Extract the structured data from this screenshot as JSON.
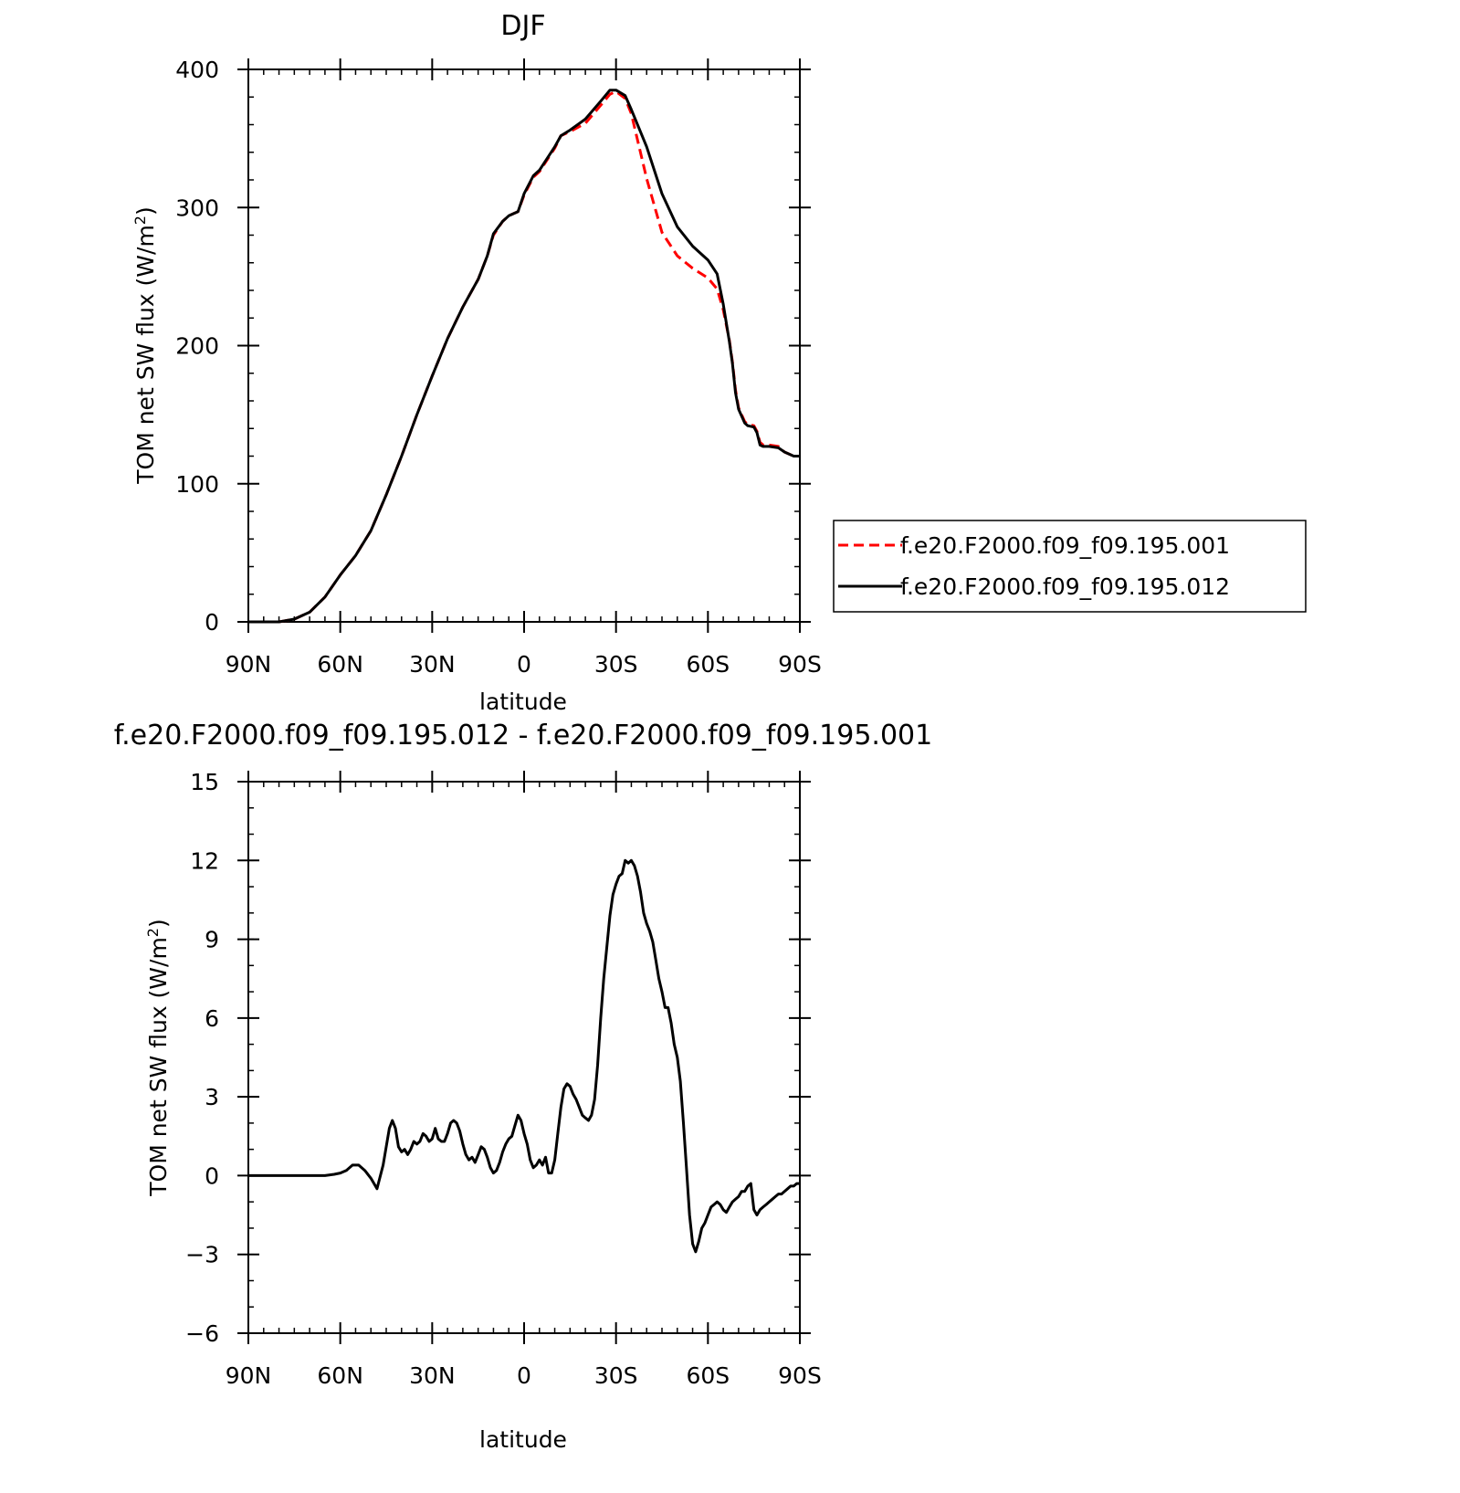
{
  "colors": {
    "series_001": "#ff0000",
    "series_012": "#000000",
    "axis": "#000000",
    "background": "#ffffff"
  },
  "chart_data": [
    {
      "type": "line",
      "title": "DJF",
      "xlabel": "latitude",
      "ylabel": "TOM net SW flux (W/m²)",
      "ylabel_base": "TOM net SW flux (W/m",
      "ylabel_sup": "2",
      "ylabel_end": ")",
      "xlim": [
        90,
        -90
      ],
      "ylim": [
        0,
        400
      ],
      "x_ticks": [
        90,
        60,
        30,
        0,
        -30,
        -60,
        -90
      ],
      "x_tick_labels": [
        "90N",
        "60N",
        "30N",
        "0",
        "30S",
        "60S",
        "90S"
      ],
      "y_ticks": [
        0,
        100,
        200,
        300,
        400
      ],
      "y_tick_labels": [
        "0",
        "100",
        "200",
        "300",
        "400"
      ],
      "grid": false,
      "legend_position": "right",
      "series": [
        {
          "name": "f.e20.F2000.f09_f09.195.001",
          "color": "#ff0000",
          "dash": "dashed",
          "x": [
            90,
            80,
            75,
            70,
            65,
            60,
            55,
            50,
            45,
            40,
            35,
            30,
            25,
            20,
            15,
            12,
            10,
            7,
            5,
            2,
            0,
            -3,
            -5,
            -10,
            -12,
            -15,
            -20,
            -25,
            -28,
            -30,
            -33,
            -35,
            -40,
            -45,
            -50,
            -55,
            -60,
            -63,
            -65,
            -67,
            -68,
            -69,
            -70,
            -72,
            -73,
            -75,
            -76,
            -77,
            -78,
            -79,
            -80,
            -83,
            -85,
            -87,
            -88,
            -90
          ],
          "y": [
            0,
            0,
            2,
            7,
            18,
            34,
            48,
            66,
            92,
            120,
            150,
            178,
            205,
            228,
            248,
            265,
            280,
            290,
            294,
            297,
            309,
            322,
            326,
            343,
            352,
            355,
            361,
            374,
            382,
            384,
            379,
            368,
            321,
            282,
            265,
            256,
            249,
            241,
            226,
            204,
            188,
            168,
            155,
            145,
            143,
            142,
            138,
            130,
            128,
            129,
            128,
            127,
            123,
            121,
            120,
            120
          ]
        },
        {
          "name": "f.e20.F2000.f09_f09.195.012",
          "color": "#000000",
          "dash": "solid",
          "x": [
            90,
            80,
            75,
            70,
            65,
            60,
            55,
            50,
            45,
            40,
            35,
            30,
            25,
            20,
            15,
            12,
            10,
            7,
            5,
            2,
            0,
            -3,
            -5,
            -10,
            -12,
            -15,
            -20,
            -25,
            -28,
            -30,
            -33,
            -35,
            -40,
            -45,
            -50,
            -55,
            -60,
            -63,
            -65,
            -67,
            -68,
            -69,
            -70,
            -72,
            -73,
            -75,
            -76,
            -77,
            -78,
            -79,
            -80,
            -83,
            -85,
            -87,
            -88,
            -90
          ],
          "y": [
            0,
            0,
            2,
            7,
            18,
            34,
            48,
            66,
            92,
            120,
            150,
            178,
            205,
            228,
            248,
            265,
            281,
            290,
            294,
            297,
            310,
            323,
            327,
            344,
            352,
            356,
            364,
            377,
            385,
            385,
            381,
            371,
            344,
            310,
            286,
            272,
            262,
            252,
            230,
            203,
            187,
            166,
            154,
            144,
            142,
            141,
            137,
            128,
            127,
            127,
            127,
            126,
            123,
            121,
            120,
            120
          ]
        }
      ]
    },
    {
      "type": "line",
      "title": "f.e20.F2000.f09_f09.195.012 - f.e20.F2000.f09_f09.195.001",
      "xlabel": "latitude",
      "ylabel": "TOM net SW flux (W/m²)",
      "ylabel_base": "TOM net SW flux (W/m",
      "ylabel_sup": "2",
      "ylabel_end": ")",
      "xlim": [
        90,
        -90
      ],
      "ylim": [
        -6,
        15
      ],
      "x_ticks": [
        90,
        60,
        30,
        0,
        -30,
        -60,
        -90
      ],
      "x_tick_labels": [
        "90N",
        "60N",
        "30N",
        "0",
        "30S",
        "60S",
        "90S"
      ],
      "y_ticks": [
        -6,
        -3,
        0,
        3,
        6,
        9,
        12,
        15
      ],
      "y_tick_labels": [
        "−6",
        "−3",
        "0",
        "3",
        "6",
        "9",
        "12",
        "15"
      ],
      "grid": false,
      "series": [
        {
          "color": "#000000",
          "dash": "solid",
          "x": [
            90,
            80,
            70,
            65,
            62,
            60,
            58,
            56,
            54,
            52,
            50,
            48,
            46,
            44,
            43,
            42,
            41,
            40,
            39,
            38,
            37,
            36,
            35,
            34,
            33,
            32,
            31,
            30,
            29,
            28,
            27,
            26,
            25,
            24,
            23,
            22,
            21,
            20,
            19,
            18,
            17,
            16,
            15,
            14,
            13,
            12,
            11,
            10,
            9,
            8,
            7,
            6,
            5,
            4,
            3,
            2,
            1,
            0,
            -1,
            -2,
            -3,
            -4,
            -5,
            -6,
            -7,
            -8,
            -9,
            -10,
            -11,
            -12,
            -13,
            -14,
            -15,
            -16,
            -17,
            -18,
            -19,
            -20,
            -21,
            -22,
            -23,
            -24,
            -25,
            -26,
            -27,
            -28,
            -29,
            -30,
            -31,
            -32,
            -33,
            -34,
            -35,
            -36,
            -37,
            -38,
            -39,
            -40,
            -41,
            -42,
            -43,
            -44,
            -45,
            -46,
            -47,
            -48,
            -49,
            -50,
            -51,
            -52,
            -53,
            -54,
            -55,
            -56,
            -57,
            -58,
            -59,
            -60,
            -61,
            -62,
            -63,
            -64,
            -65,
            -66,
            -67,
            -68,
            -69,
            -70,
            -71,
            -72,
            -73,
            -74,
            -75,
            -76,
            -77,
            -78,
            -79,
            -80,
            -81,
            -82,
            -83,
            -84,
            -85,
            -86,
            -87,
            -88,
            -89,
            -90
          ],
          "y": [
            0,
            0,
            0,
            0,
            0.05,
            0.1,
            0.2,
            0.4,
            0.4,
            0.2,
            -0.1,
            -0.5,
            0.4,
            1.8,
            2.1,
            1.8,
            1.1,
            0.9,
            1.0,
            0.8,
            1.0,
            1.3,
            1.2,
            1.3,
            1.6,
            1.5,
            1.3,
            1.4,
            1.8,
            1.4,
            1.3,
            1.3,
            1.6,
            2.0,
            2.1,
            2.0,
            1.7,
            1.2,
            0.8,
            0.6,
            0.7,
            0.5,
            0.8,
            1.1,
            1.0,
            0.7,
            0.3,
            0.1,
            0.2,
            0.5,
            0.9,
            1.2,
            1.4,
            1.5,
            1.9,
            2.3,
            2.1,
            1.6,
            1.2,
            0.6,
            0.3,
            0.4,
            0.6,
            0.4,
            0.7,
            0.1,
            0.1,
            0.6,
            1.6,
            2.6,
            3.3,
            3.5,
            3.4,
            3.1,
            2.9,
            2.6,
            2.3,
            2.2,
            2.1,
            2.3,
            2.9,
            4.2,
            6.0,
            7.5,
            8.7,
            9.9,
            10.7,
            11.1,
            11.4,
            11.5,
            12.0,
            11.9,
            12.0,
            11.8,
            11.4,
            10.8,
            10.0,
            9.6,
            9.3,
            8.9,
            8.2,
            7.5,
            7.0,
            6.4,
            6.4,
            5.8,
            5.0,
            4.5,
            3.6,
            2.0,
            0.3,
            -1.5,
            -2.6,
            -2.9,
            -2.5,
            -2.0,
            -1.8,
            -1.5,
            -1.2,
            -1.1,
            -1.0,
            -1.1,
            -1.3,
            -1.4,
            -1.2,
            -1.0,
            -0.9,
            -0.8,
            -0.6,
            -0.6,
            -0.4,
            -0.3,
            -1.3,
            -1.5,
            -1.3,
            -1.2,
            -1.1,
            -1.0,
            -0.9,
            -0.8,
            -0.7,
            -0.7,
            -0.6,
            -0.5,
            -0.4,
            -0.4,
            -0.3,
            -0.3
          ]
        }
      ]
    }
  ]
}
